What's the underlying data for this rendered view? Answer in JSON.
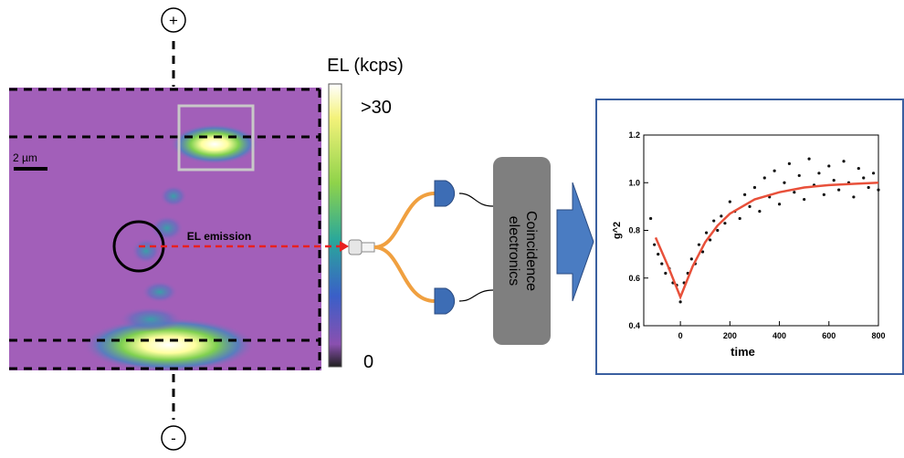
{
  "diagram": {
    "colorbar_title": "EL (kcps)",
    "colorbar_max": ">30",
    "colorbar_min": "0",
    "scale_bar": "2 µm",
    "plus": "+",
    "minus": "-",
    "emission_label": "EL emission",
    "electronics_label": [
      "Coincidence",
      "electronics"
    ]
  },
  "chart_data": {
    "type": "scatter",
    "x_label": "time",
    "y_label": "g^2",
    "xlim": [
      -148,
      800
    ],
    "ylim": [
      0.4,
      1.2
    ],
    "xticks": [
      0,
      200,
      400,
      600,
      800
    ],
    "yticks": [
      0.4,
      0.6,
      0.8,
      {
        "value": 1,
        "label": "1.0"
      },
      1.2
    ],
    "series": [
      {
        "color": "#111111",
        "x": [
          -120,
          -105,
          -90,
          -75,
          -60,
          -45,
          -30,
          -15,
          0,
          15,
          30,
          45,
          60,
          75,
          90,
          105,
          120,
          135,
          150,
          165,
          180,
          200,
          220,
          240,
          260,
          280,
          300,
          320,
          340,
          360,
          380,
          400,
          420,
          440,
          460,
          480,
          500,
          520,
          540,
          560,
          580,
          600,
          620,
          640,
          660,
          680,
          700,
          720,
          740,
          760,
          780,
          800
        ],
        "values": [
          0.85,
          0.74,
          0.7,
          0.66,
          0.62,
          0.64,
          0.58,
          0.57,
          0.5,
          0.58,
          0.62,
          0.68,
          0.66,
          0.74,
          0.71,
          0.79,
          0.76,
          0.84,
          0.8,
          0.86,
          0.83,
          0.92,
          0.88,
          0.85,
          0.95,
          0.9,
          0.98,
          0.88,
          1.02,
          0.94,
          1.05,
          0.91,
          1.0,
          1.08,
          0.96,
          1.03,
          0.93,
          1.1,
          0.99,
          1.04,
          0.95,
          1.07,
          1.01,
          0.97,
          1.09,
          1.0,
          0.94,
          1.06,
          1.02,
          0.98,
          1.04,
          0.97
        ]
      },
      {
        "type": "line",
        "color": "#e8503a",
        "x": [
          -100,
          -50,
          0,
          50,
          100,
          150,
          200,
          300,
          400,
          500,
          600,
          700,
          800
        ],
        "values": [
          0.77,
          0.65,
          0.52,
          0.65,
          0.75,
          0.82,
          0.87,
          0.93,
          0.96,
          0.98,
          0.99,
          0.995,
          1.0
        ]
      }
    ]
  }
}
